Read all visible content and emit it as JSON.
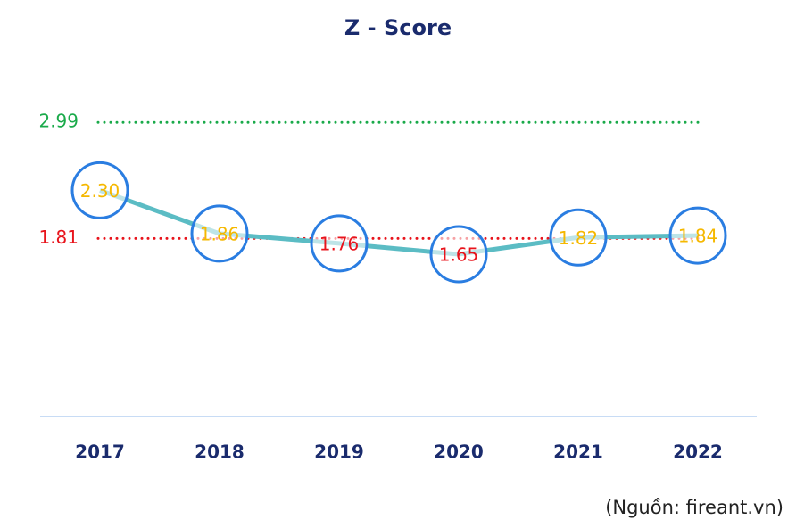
{
  "chart_data": {
    "type": "line",
    "title": "Z - Score",
    "categories": [
      "2017",
      "2018",
      "2019",
      "2020",
      "2021",
      "2022"
    ],
    "values": [
      2.3,
      1.86,
      1.76,
      1.65,
      1.82,
      1.84
    ],
    "value_labels": [
      "2.30",
      "1.86",
      "1.76",
      "1.65",
      "1.82",
      "1.84"
    ],
    "label_colors": [
      "#f5b800",
      "#f5b800",
      "#e8141c",
      "#e8141c",
      "#f5b800",
      "#f5b800"
    ],
    "color": "#5bbcc4",
    "marker_color": "#2a7de1",
    "ylim": [
      0,
      3.5
    ],
    "reference_lines": [
      {
        "value": 2.99,
        "color": "#1aaa4a"
      },
      {
        "value": 1.81,
        "color": "#e8141c"
      }
    ],
    "source": "(Nguồn: fireant.vn)"
  }
}
